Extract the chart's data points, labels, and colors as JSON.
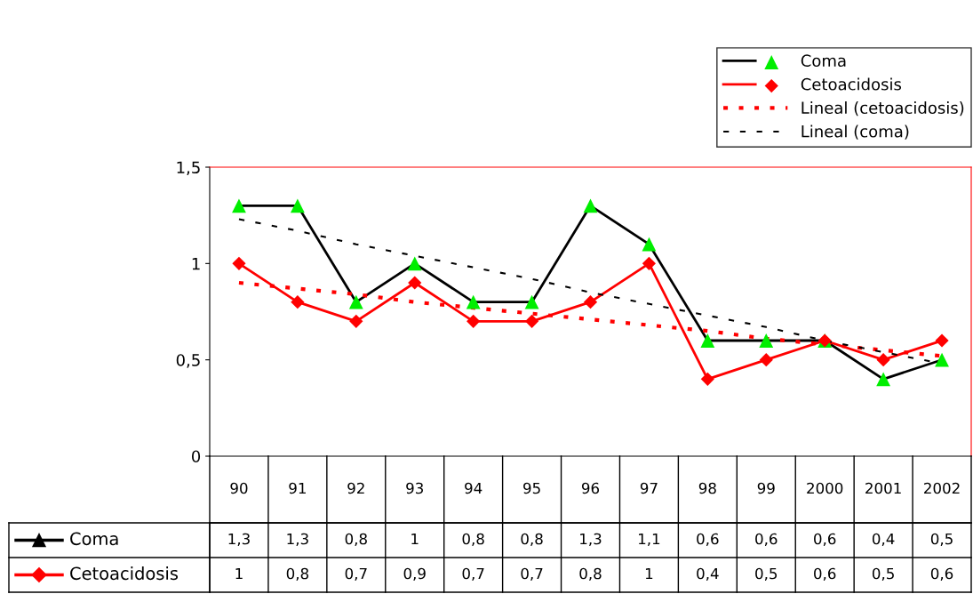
{
  "chart_data": {
    "type": "line",
    "categories": [
      "90",
      "91",
      "92",
      "93",
      "94",
      "95",
      "96",
      "97",
      "98",
      "99",
      "2000",
      "2001",
      "2002"
    ],
    "series": [
      {
        "name": "Coma",
        "color": "#000000",
        "marker": "triangle",
        "colors": [
          "#00ee00",
          "#00ee00",
          "#00ee00",
          "#00ee00",
          "#00ee00",
          "#00ee00",
          "#00ee00",
          "#00ee00",
          "#00ee00",
          "#00ee00",
          "#00ee00",
          "#00ee00",
          "#00ee00"
        ],
        "values": [
          1.3,
          1.3,
          0.8,
          1,
          0.8,
          0.8,
          1.3,
          1.1,
          0.6,
          0.6,
          0.6,
          0.4,
          0.5
        ],
        "value_labels": [
          "1,3",
          "1,3",
          "0,8",
          "1",
          "0,8",
          "0,8",
          "1,3",
          "1,1",
          "0,6",
          "0,6",
          "0,6",
          "0,4",
          "0,5"
        ]
      },
      {
        "name": "Cetoacidosis",
        "color": "#ff0000",
        "marker": "diamond",
        "values": [
          1,
          0.8,
          0.7,
          0.9,
          0.7,
          0.7,
          0.8,
          1,
          0.4,
          0.5,
          0.6,
          0.5,
          0.6
        ],
        "value_labels": [
          "1",
          "0,8",
          "0,7",
          "0,9",
          "0,7",
          "0,7",
          "0,8",
          "1",
          "0,4",
          "0,5",
          "0,6",
          "0,5",
          "0,6"
        ]
      },
      {
        "name": "Lineal (cetoacidosis)",
        "color": "#ff0000",
        "marker": "none",
        "line_style": "dotted",
        "values": [
          0.9,
          0.87,
          0.84,
          0.8,
          0.77,
          0.74,
          0.71,
          0.68,
          0.65,
          0.61,
          0.58,
          0.55,
          0.52
        ]
      },
      {
        "name": "Lineal (coma)",
        "color": "#000000",
        "marker": "none",
        "line_style": "dashed",
        "values": [
          1.23,
          1.17,
          1.1,
          1.04,
          0.98,
          0.92,
          0.85,
          0.79,
          0.73,
          0.67,
          0.6,
          0.54,
          0.48
        ]
      }
    ],
    "ylim": [
      0,
      1.5
    ],
    "yticks": [
      0,
      {
        "value": 0.5,
        "label": "0,5"
      },
      1,
      {
        "value": 1.5,
        "label": "1,5"
      }
    ],
    "grid": false,
    "legend": "top right"
  }
}
